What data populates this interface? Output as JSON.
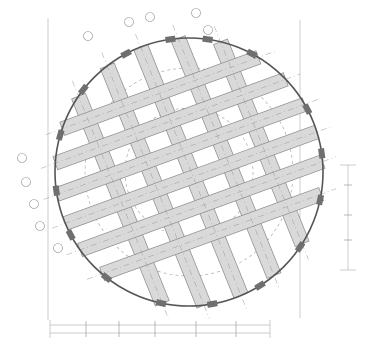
{
  "diagram": {
    "kind": "circular foundation plan with crossing beam strips",
    "colors": {
      "outline": "#555555",
      "beam_fill": "#d9d9d9",
      "beam_stroke": "#8a8a8a",
      "axis": "#9a9a9a",
      "pad": "#6f6f6f"
    },
    "beam_groups": [
      {
        "direction": "steep",
        "count": 5
      },
      {
        "direction": "shallow",
        "count": 6
      }
    ],
    "perimeter_pads": 16,
    "axis_bubbles": {
      "top": [
        "",
        "",
        "",
        "",
        ""
      ],
      "left": [
        "",
        "",
        "",
        "",
        ""
      ]
    },
    "dimension_labels": {
      "bottom": [
        "",
        "",
        "",
        "",
        ""
      ],
      "right": [
        "",
        "",
        ""
      ]
    }
  }
}
